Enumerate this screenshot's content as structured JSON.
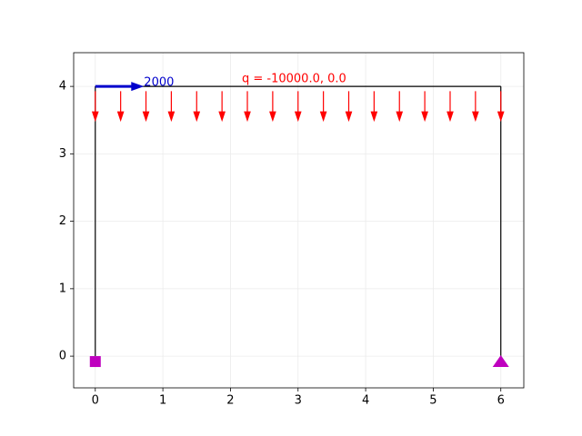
{
  "chart_data": {
    "type": "frame",
    "xlim": [
      -0.32,
      6.34
    ],
    "ylim": [
      -0.47,
      4.5
    ],
    "xticks": [
      0,
      1,
      2,
      3,
      4,
      5,
      6
    ],
    "yticks": [
      0,
      1,
      2,
      3,
      4
    ],
    "grid": true,
    "members": [
      {
        "x": [
          0,
          0
        ],
        "y": [
          0,
          4
        ]
      },
      {
        "x": [
          0,
          6
        ],
        "y": [
          4,
          4
        ]
      },
      {
        "x": [
          6,
          6
        ],
        "y": [
          4,
          0
        ]
      }
    ],
    "member_color": "#000000",
    "distributed_load": {
      "label": "q = -10000.0, 0.0",
      "color": "#ff0000",
      "x": [
        0,
        0.375,
        0.75,
        1.125,
        1.5,
        1.875,
        2.25,
        2.625,
        3,
        3.375,
        3.75,
        4.125,
        4.5,
        4.875,
        5.25,
        5.625,
        6
      ],
      "y_start": 3.93,
      "y_end": 3.5
    },
    "point_load": {
      "label": "2000",
      "color": "#0000cc",
      "x": [
        0,
        0.72
      ],
      "y": [
        4,
        4
      ]
    },
    "supports": [
      {
        "marker": "square",
        "x": 0,
        "y": -0.08,
        "color": "#bf00bf"
      },
      {
        "marker": "triangle",
        "x": 6,
        "y": -0.08,
        "color": "#bf00bf"
      }
    ]
  }
}
